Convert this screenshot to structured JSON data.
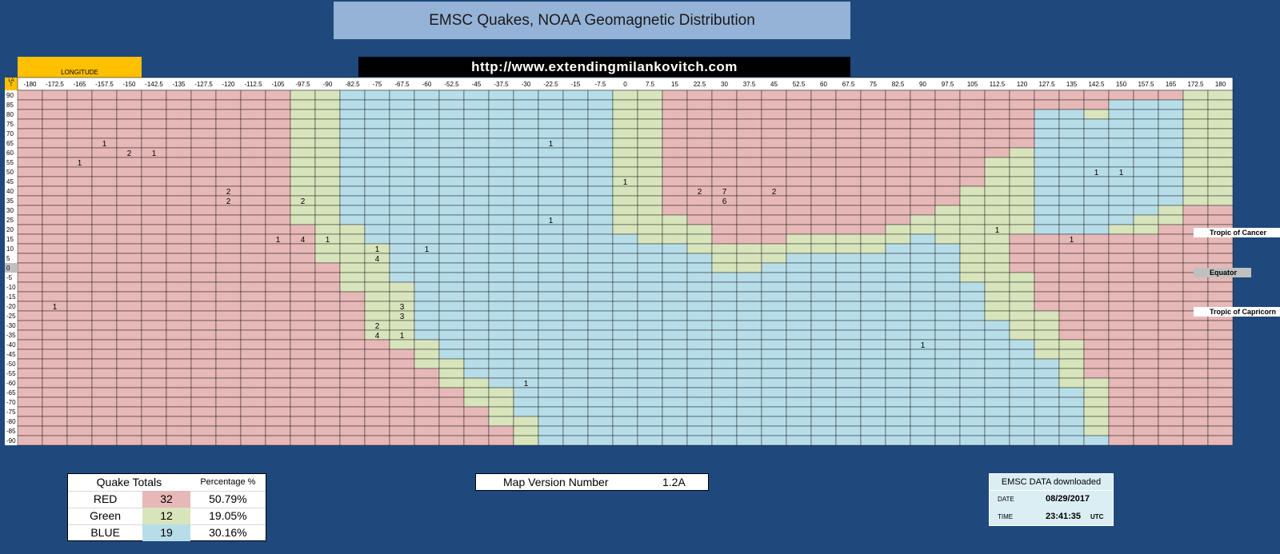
{
  "title": "EMSC Quakes, NOAA Geomagnetic Distribution",
  "url": "http://www.extendingmilankovitch.com",
  "longitude_header": "LONGITUDE",
  "corner_label": "LA\nT",
  "colors": {
    "background": "#1f497d",
    "red": "#e6b8b7",
    "green": "#d8e4bc",
    "blue": "#b7dde8",
    "banner": "#95b3d7",
    "orange": "#ffc000"
  },
  "longitudes": [
    "-180",
    "-172.5",
    "-165",
    "-157.5",
    "-150",
    "-142.5",
    "-135",
    "-127.5",
    "-120",
    "-112.5",
    "-105",
    "-97.5",
    "-90",
    "-82.5",
    "-75",
    "-67.5",
    "-60",
    "-52.5",
    "-45",
    "-37.5",
    "-30",
    "-22.5",
    "-15",
    "-7.5",
    "0",
    "7.5",
    "15",
    "22.5",
    "30",
    "37.5",
    "45",
    "52.5",
    "60",
    "67.5",
    "75",
    "82.5",
    "90",
    "97.5",
    "105",
    "112.5",
    "120",
    "127.5",
    "135",
    "142.5",
    "150",
    "157.5",
    "165",
    "172.5",
    "180"
  ],
  "latitudes": [
    "90",
    "85",
    "80",
    "75",
    "70",
    "65",
    "60",
    "55",
    "50",
    "45",
    "40",
    "35",
    "30",
    "25",
    "20",
    "15",
    "10",
    "5",
    "0",
    "-5",
    "-10",
    "-15",
    "-20",
    "-25",
    "-30",
    "-35",
    "-40",
    "-45",
    "-50",
    "-55",
    "-60",
    "-65",
    "-70",
    "-75",
    "-80",
    "-85",
    "-90"
  ],
  "zones_by_column": [
    "RRRRRRRRRRRRRRRRRRRRRRRRRRRRRRRRRRRRR",
    "RRRRRRRRRRRRRRRRRRRRRRRRRRRRRRRRRRRRR",
    "RRRRRRRRRRRRRRRRRRRRRRRRRRRRRRRRRRRRR",
    "RRRRRRRRRRRRRRRRRRRRRRRRRRRRRRRRRRRRR",
    "RRRRRRRRRRRRRRRRRRRRRRRRRRRRRRRRRRRRR",
    "RRRRRRRRRRRRRRRRRRRRRRRRRRRRRRRRRRRRR",
    "RRRRRRRRRRRRRRRRRRRRRRRRRRRRRRRRRRRRR",
    "RRRRRRRRRRRRRRRRRRRRRRRRRRRRRRRRRRRRR",
    "RRRRRRRRRRRRRRRRRRRRRRRRRRRRRRRRRRRRR",
    "RRRRRRRRRRRRRRRRRRRRRRRRRRRRRRRRRRRRR",
    "RRRRRRRRRRRRRRRRRRRRRRRRRRRRRRRRRRRRR",
    "GGGGGGGGGGGGGGRRRRRRRRRRRRRRRRRRRRRRR",
    "GGGGGGGGGGGGGGGGGGRRRRRRRRRRRRRRRRRRR",
    "BBBBBBBBBBBBBBGGGGGGGRRRRRRRRRRRRRRRR",
    "BBBBBBBBBBBBBBBBGGGGGGGGGGRRRRRRRRRRR",
    "BBBBBBBBBBBBBBBBBBBBGGGGGGGRRRRRRRRRR",
    "BBBBBBBBBBBBBBBBBBBBBBBBBBGGGRRRRRRRR",
    "BBBBBBBBBBBBBBBBBBBBBBBBBBBBGGGRRRRRR",
    "BBBBBBBBBBBBBBBBBBBBBBBBBBBBBBGGGRRRR",
    "BBBBBBBBBBBBBBBBBBBBBBBBBBBBBBBGGGGRR",
    "BBBBBBBBBBBBBBBBBBBBBBBBBBBBBBBBBBGGG",
    "BBBBBBBBBBBBBBBBBBBBBBBBBBBBBBBBBBBBB",
    "BBBBBBBBBBBBBBBBBBBBBBBBBBBBBBBBBBBBB",
    "BBBBBBBBBBBBBBBBBBBBBBBBBBBBBBBBBBBBB",
    "GGGGGGGGGGGGGGGBBBBBBBBBBBBBBBBBBBBBB",
    "GGGGGGGGGGGGGGGGBBBBBBBBBBBBBBBBBBBBB",
    "RRRRRRRRRRRRRGGGBBBBBBBBBBBBBBBBBBBBB",
    "RRRRRRRRRRRRRRGGGBBBBBBBBBBBBBBBBBBBB",
    "RRRRRRRRRRRRRRRRGGGBBBBBBBBBBBBBBBBBB",
    "RRRRRRRRRRRRRRRRGGGBBBBBBBBBBBBBBBBBB",
    "RRRRRRRRRRRRRRRRGGBBBBBBBBBBBBBBBBBBB",
    "RRRRRRRRRRRRRRRGGBBBBBBBBBBBBBBBBBBBB",
    "RRRRRRRRRRRRRRRGGBBBBBBBBBBBBBBBBBBBB",
    "RRRRRRRRRRRRRRRGGBBBBBBBBBBBBBBBBBBBB",
    "RRRRRRRRRRRRRRRGGBBBBBBBBBBBBBBBBBBBB",
    "RRRRRRRRRRRRRRGGBBBBBBBBBBBBBBBBBBBBB",
    "RRRRRRRRRRRRRGGBBBBBBBBBBBBBBBBBBBBBB",
    "RRRRRRRRRRRRGGGGBBBBBBBBBBBBBBBBBBBBB",
    "RRRRRRRRRRGGGGGGGGGGBBBBBBBBBBBBBBBBB",
    "RRRRRRRGGGGGGGGGGGGGGGGGBBBBBBBBBBBBB",
    "RRRRRRGGGGGGGGGRRRRGGGGGGGBBBBBBBBBBB",
    "RRBBBBBBBBBBBBBRRRRRRRRGGGGGBBBBBBBBB",
    "RRBBBBBBBBBBBBBRRRRRRRRRRRGGGGGBBBBBB",
    "RRGBBBBBBBBBBBBRRRRRRRRRRRRRRRGGGGGGB",
    "RBBBBBBBBBBBBBGRRRRRRRRRRRRRRRRRRRRRR",
    "RBBBBBBBBBBBBGGRRRRRRRRRRRRRRRRRRRRRR",
    "RBBBBBBBBBBBGGRRRRRRRRRRRRRRRRRRRRRRR",
    "GGGGGGGGGGGGRRRRRRRRRRRRRRRRRRRRRRRRR",
    "GGGGGGGGGGGGRRRRRRRRRRRRRRRRRRRRRRRRR"
  ],
  "quake_counts": [
    {
      "col": 3,
      "row": 5,
      "value": "1"
    },
    {
      "col": 4,
      "row": 6,
      "value": "2"
    },
    {
      "col": 5,
      "row": 6,
      "value": "1"
    },
    {
      "col": 2,
      "row": 7,
      "value": "1"
    },
    {
      "col": 21,
      "row": 5,
      "value": "1"
    },
    {
      "col": 8,
      "row": 10,
      "value": "2"
    },
    {
      "col": 8,
      "row": 11,
      "value": "2"
    },
    {
      "col": 11,
      "row": 11,
      "value": "2"
    },
    {
      "col": 24,
      "row": 9,
      "value": "1"
    },
    {
      "col": 27,
      "row": 10,
      "value": "2"
    },
    {
      "col": 28,
      "row": 10,
      "value": "7"
    },
    {
      "col": 30,
      "row": 10,
      "value": "2"
    },
    {
      "col": 28,
      "row": 11,
      "value": "6"
    },
    {
      "col": 21,
      "row": 13,
      "value": "1"
    },
    {
      "col": 43,
      "row": 8,
      "value": "1"
    },
    {
      "col": 44,
      "row": 8,
      "value": "1"
    },
    {
      "col": 10,
      "row": 15,
      "value": "1"
    },
    {
      "col": 11,
      "row": 15,
      "value": "4"
    },
    {
      "col": 12,
      "row": 15,
      "value": "1"
    },
    {
      "col": 39,
      "row": 14,
      "value": "1"
    },
    {
      "col": 42,
      "row": 15,
      "value": "1"
    },
    {
      "col": 14,
      "row": 16,
      "value": "1"
    },
    {
      "col": 16,
      "row": 16,
      "value": "1"
    },
    {
      "col": 14,
      "row": 17,
      "value": "4"
    },
    {
      "col": 1,
      "row": 22,
      "value": "1"
    },
    {
      "col": 15,
      "row": 22,
      "value": "3"
    },
    {
      "col": 15,
      "row": 23,
      "value": "3"
    },
    {
      "col": 14,
      "row": 24,
      "value": "2"
    },
    {
      "col": 14,
      "row": 25,
      "value": "4"
    },
    {
      "col": 15,
      "row": 25,
      "value": "1"
    },
    {
      "col": 36,
      "row": 26,
      "value": "1"
    },
    {
      "col": 20,
      "row": 30,
      "value": "1"
    }
  ],
  "side_labels": {
    "tropic_cancer": "Tropic of Cancer",
    "equator": "Equator",
    "tropic_capricorn": "Tropic of Capricorn"
  },
  "totals": {
    "header": "Quake Totals",
    "pct_header": "Percentage %",
    "rows": [
      {
        "label": "RED",
        "count": "32",
        "percent": "50.79%",
        "color": "#e6b8b7"
      },
      {
        "label": "Green",
        "count": "12",
        "percent": "19.05%",
        "color": "#d8e4bc"
      },
      {
        "label": "BLUE",
        "count": "19",
        "percent": "30.16%",
        "color": "#b7dde8"
      }
    ]
  },
  "map_version": {
    "label": "Map Version Number",
    "value": "1.2A"
  },
  "emsc": {
    "header": "EMSC DATA downloaded",
    "date_label": "DATE",
    "date": "08/29/2017",
    "time_label": "TIME",
    "time": "23:41:35",
    "tz": "UTC"
  }
}
